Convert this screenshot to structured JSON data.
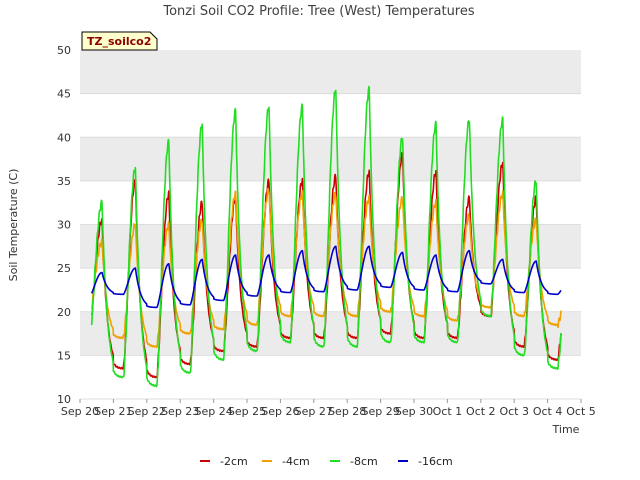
{
  "chart_data": {
    "type": "line",
    "title": "Tonzi Soil CO2 Profile: Tree (West) Temperatures",
    "xlabel": "Time",
    "ylabel": "Soil Temperature (C)",
    "badge": "TZ_soilco2",
    "ylim": [
      10,
      50
    ],
    "yticks": [
      "10",
      "15",
      "20",
      "25",
      "30",
      "35",
      "40",
      "45",
      "50"
    ],
    "xlim_days": [
      0,
      15
    ],
    "xticks": [
      "Sep 20",
      "Sep 21",
      "Sep 22",
      "Sep 23",
      "Sep 24",
      "Sep 25",
      "Sep 26",
      "Sep 27",
      "Sep 28",
      "Sep 29",
      "Sep 30",
      "Oct 1",
      "Oct 2",
      "Oct 3",
      "Oct 4",
      "Oct 5"
    ],
    "grid": "horizontal bands",
    "legend_position": "bottom-center",
    "series": [
      {
        "name": "-2cm",
        "color": "#cc0000",
        "min": [
          18.0,
          13.5,
          12.5,
          14.0,
          15.5,
          16.0,
          17.0,
          17.0,
          17.0,
          17.5,
          17.0,
          17.0,
          19.5,
          16.0,
          14.5
        ],
        "max": [
          30.5,
          35.0,
          33.5,
          32.5,
          33.0,
          35.0,
          35.0,
          35.5,
          36.0,
          38.0,
          36.0,
          33.0,
          37.0,
          33.0,
          24.5
        ],
        "start": 17.5,
        "end": 18.5
      },
      {
        "name": "-4cm",
        "color": "#f0a000",
        "min": [
          19.5,
          17.0,
          16.0,
          17.5,
          18.0,
          18.5,
          19.5,
          19.5,
          19.5,
          20.0,
          19.5,
          19.0,
          20.5,
          19.5,
          18.5
        ],
        "max": [
          28.0,
          30.0,
          30.0,
          30.5,
          33.5,
          34.0,
          33.5,
          33.5,
          33.0,
          33.0,
          32.5,
          31.0,
          33.5,
          30.5,
          23.0
        ],
        "start": 19.5,
        "end": 20.5
      },
      {
        "name": "-8cm",
        "color": "#22dd22",
        "min": [
          17.0,
          12.5,
          11.5,
          13.0,
          14.5,
          15.5,
          16.5,
          16.0,
          16.0,
          16.5,
          16.5,
          16.5,
          19.5,
          15.0,
          13.5
        ],
        "max": [
          32.5,
          36.5,
          39.5,
          41.5,
          43.0,
          43.5,
          43.5,
          45.5,
          45.5,
          40.0,
          41.5,
          42.0,
          42.0,
          35.0,
          26.0
        ],
        "start": 16.5,
        "end": 18.0
      },
      {
        "name": "-16cm",
        "color": "#0000cc",
        "min": [
          21.8,
          22.0,
          20.5,
          20.8,
          21.3,
          21.8,
          22.2,
          22.3,
          22.5,
          22.8,
          22.5,
          22.3,
          23.2,
          22.2,
          22.0
        ],
        "max": [
          24.5,
          25.0,
          25.5,
          26.0,
          26.5,
          26.5,
          27.0,
          27.5,
          27.5,
          26.8,
          26.5,
          27.0,
          26.0,
          25.8,
          23.5
        ],
        "start": 22.0,
        "end": 22.5
      }
    ]
  }
}
